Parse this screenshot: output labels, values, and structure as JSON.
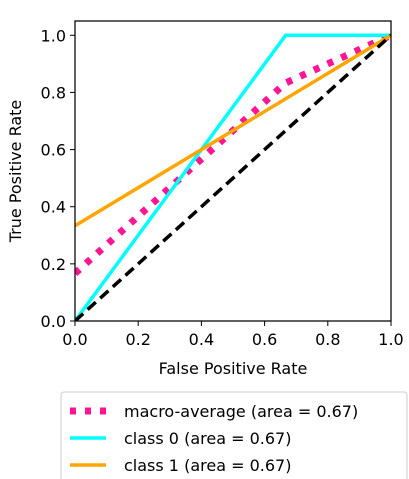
{
  "chart_data": {
    "type": "line",
    "title": "",
    "xlabel": "False Positive Rate",
    "ylabel": "True Positive Rate",
    "xlim": [
      0.0,
      1.0
    ],
    "ylim": [
      0.0,
      1.05
    ],
    "xticks": [
      "0.0",
      "0.2",
      "0.4",
      "0.6",
      "0.8",
      "1.0"
    ],
    "yticks": [
      "0.0",
      "0.2",
      "0.4",
      "0.6",
      "0.8",
      "1.0"
    ],
    "grid": false,
    "legend_position": "bottom (below axes)",
    "series": [
      {
        "name": "macro-average (area = 0.67)",
        "color": "#ff1493",
        "style": "dotted",
        "x": [
          0.0,
          0.3333,
          0.6667,
          1.0
        ],
        "y": [
          0.1667,
          0.5,
          0.8333,
          1.0
        ]
      },
      {
        "name": "class 0 (area = 0.67)",
        "color": "#00ffff",
        "style": "solid",
        "x": [
          0.0,
          0.6667,
          1.0
        ],
        "y": [
          0.0,
          1.0,
          1.0
        ]
      },
      {
        "name": "class 1 (area = 0.67)",
        "color": "#ffa500",
        "style": "solid",
        "x": [
          0.0,
          1.0
        ],
        "y": [
          0.3333,
          1.0
        ]
      }
    ],
    "reference_line": {
      "color": "#000000",
      "style": "dashed",
      "x": [
        0.0,
        1.0
      ],
      "y": [
        0.0,
        1.0
      ]
    }
  }
}
